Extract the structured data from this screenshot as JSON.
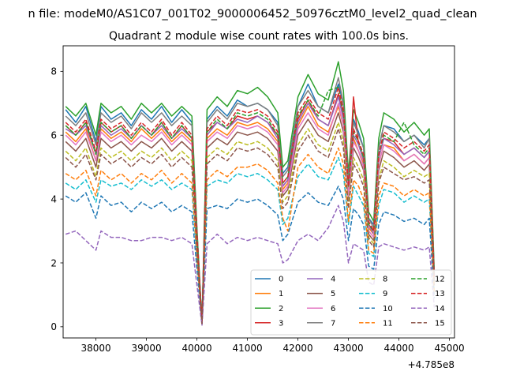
{
  "figure": {
    "suptitle": "n file: modeM0/AS1C07_001T02_9000006452_50976cztM0_level2_quad_clean",
    "title": "Quadrant 2 module wise count rates with 100.0s bins."
  },
  "chart_data": {
    "type": "line",
    "title": "Quadrant 2 module wise count rates with 100.0s bins.",
    "xlabel": "",
    "ylabel": "",
    "x_offset_label": "+4.785e8",
    "xlim": [
      37350,
      45100
    ],
    "ylim": [
      -0.35,
      8.8
    ],
    "xticks": [
      38000,
      39000,
      40000,
      41000,
      42000,
      43000,
      44000,
      45000
    ],
    "xtick_labels": [
      "38000",
      "39000",
      "40000",
      "41000",
      "42000",
      "43000",
      "44000",
      "45000"
    ],
    "yticks": [
      0,
      2,
      4,
      6,
      8
    ],
    "ytick_labels": [
      "0",
      "2",
      "4",
      "6",
      "8"
    ],
    "grid": false,
    "legend": {
      "placement": "lower-right",
      "columns": 4
    },
    "anchors_x": [
      37400,
      37600,
      37800,
      38000,
      38100,
      38300,
      38500,
      38700,
      38900,
      39100,
      39300,
      39500,
      39700,
      39900,
      40000,
      40100,
      40200,
      40400,
      40600,
      40800,
      41000,
      41200,
      41400,
      41600,
      41700,
      41800,
      42000,
      42200,
      42400,
      42600,
      42800,
      42900,
      43000,
      43100,
      43200,
      43300,
      43400,
      43500,
      43600,
      43700,
      43900,
      44100,
      44300,
      44500,
      44600,
      44700
    ],
    "series": [
      {
        "name": "0",
        "color": "#1f77b4",
        "dash": "solid",
        "values": [
          6.8,
          6.4,
          6.9,
          5.8,
          6.9,
          6.5,
          6.7,
          6.3,
          6.8,
          6.5,
          6.9,
          6.4,
          6.8,
          6.4,
          3.0,
          0.1,
          6.5,
          6.9,
          6.6,
          7.1,
          6.9,
          7.0,
          6.8,
          6.4,
          4.8,
          5.0,
          6.9,
          7.6,
          6.9,
          6.7,
          7.6,
          7.0,
          4.6,
          6.5,
          6.1,
          5.6,
          3.4,
          3.2,
          5.6,
          6.3,
          6.2,
          5.8,
          6.0,
          5.7,
          5.9,
          1.6
        ]
      },
      {
        "name": "1",
        "color": "#ff7f0e",
        "dash": "solid",
        "values": [
          6.1,
          5.8,
          6.2,
          5.2,
          6.2,
          5.9,
          6.1,
          5.8,
          6.2,
          5.9,
          6.2,
          5.8,
          6.1,
          5.8,
          2.8,
          0.1,
          5.9,
          6.2,
          6.0,
          6.4,
          6.3,
          6.4,
          6.2,
          5.8,
          4.3,
          4.5,
          6.3,
          6.9,
          6.3,
          6.1,
          6.9,
          6.3,
          4.2,
          5.9,
          5.5,
          5.1,
          3.1,
          2.9,
          5.1,
          5.7,
          5.6,
          5.2,
          5.4,
          5.1,
          5.3,
          1.4
        ]
      },
      {
        "name": "2",
        "color": "#2ca02c",
        "dash": "solid",
        "values": [
          6.9,
          6.6,
          7.0,
          6.0,
          7.0,
          6.7,
          6.9,
          6.5,
          7.0,
          6.7,
          7.0,
          6.6,
          6.9,
          6.6,
          3.1,
          0.1,
          6.8,
          7.2,
          6.9,
          7.4,
          7.3,
          7.5,
          7.2,
          6.7,
          5.0,
          5.2,
          7.2,
          7.9,
          7.3,
          7.1,
          8.3,
          7.4,
          4.8,
          6.8,
          6.4,
          5.9,
          3.6,
          3.3,
          5.9,
          6.7,
          6.5,
          6.1,
          6.4,
          6.0,
          6.2,
          1.7
        ]
      },
      {
        "name": "3",
        "color": "#d62728",
        "dash": "solid",
        "values": [
          6.3,
          6.0,
          6.4,
          5.4,
          6.4,
          6.1,
          6.3,
          5.9,
          6.3,
          6.0,
          6.4,
          5.9,
          6.3,
          5.9,
          2.8,
          0.1,
          6.1,
          6.4,
          6.2,
          6.6,
          6.5,
          6.6,
          6.4,
          6.0,
          4.4,
          4.6,
          6.5,
          7.1,
          6.5,
          6.3,
          7.3,
          6.6,
          4.3,
          7.2,
          5.7,
          5.3,
          3.2,
          3.0,
          5.3,
          5.9,
          5.8,
          5.4,
          5.6,
          5.3,
          5.5,
          1.5
        ]
      },
      {
        "name": "4",
        "color": "#9467bd",
        "dash": "solid",
        "values": [
          6.2,
          6.0,
          6.3,
          5.4,
          6.3,
          6.0,
          6.2,
          5.9,
          6.3,
          6.0,
          6.3,
          5.9,
          6.2,
          5.9,
          2.8,
          0.1,
          6.0,
          6.4,
          6.2,
          6.5,
          6.4,
          6.6,
          6.4,
          5.9,
          4.4,
          4.6,
          6.4,
          7.0,
          6.5,
          6.3,
          7.2,
          6.5,
          4.3,
          6.0,
          5.7,
          5.2,
          3.2,
          2.9,
          5.3,
          5.9,
          5.7,
          5.4,
          5.6,
          5.3,
          5.5,
          1.5
        ]
      },
      {
        "name": "5",
        "color": "#8c564b",
        "dash": "solid",
        "values": [
          5.8,
          5.5,
          5.9,
          5.0,
          5.9,
          5.6,
          5.8,
          5.5,
          5.8,
          5.6,
          5.9,
          5.5,
          5.8,
          5.5,
          2.6,
          0.1,
          5.6,
          5.9,
          5.7,
          6.1,
          6.0,
          6.1,
          5.9,
          5.5,
          4.1,
          4.3,
          6.0,
          6.5,
          6.0,
          5.8,
          6.7,
          6.1,
          4.0,
          5.6,
          5.3,
          4.9,
          2.9,
          2.7,
          4.9,
          5.5,
          5.3,
          5.0,
          5.2,
          4.9,
          5.1,
          1.4
        ]
      },
      {
        "name": "6",
        "color": "#e377c2",
        "dash": "solid",
        "values": [
          6.0,
          5.7,
          6.1,
          5.2,
          6.1,
          5.8,
          6.0,
          5.7,
          6.0,
          5.8,
          6.1,
          5.7,
          6.0,
          5.7,
          2.7,
          0.1,
          5.8,
          6.1,
          5.9,
          6.3,
          6.2,
          6.3,
          6.1,
          5.7,
          4.2,
          4.4,
          6.2,
          6.7,
          6.2,
          6.0,
          7.0,
          6.3,
          4.1,
          5.8,
          5.5,
          5.0,
          3.0,
          2.8,
          5.1,
          5.7,
          5.5,
          5.2,
          5.4,
          5.1,
          5.3,
          1.4
        ]
      },
      {
        "name": "7",
        "color": "#7f7f7f",
        "dash": "solid",
        "values": [
          6.6,
          6.3,
          6.7,
          5.7,
          6.7,
          6.4,
          6.6,
          6.2,
          6.7,
          6.4,
          6.7,
          6.3,
          6.6,
          6.3,
          3.0,
          0.1,
          6.4,
          6.8,
          6.5,
          7.0,
          6.9,
          7.0,
          6.8,
          6.3,
          4.7,
          4.9,
          6.9,
          7.4,
          6.9,
          6.7,
          7.8,
          7.0,
          4.6,
          6.4,
          6.0,
          5.6,
          3.4,
          3.1,
          5.6,
          6.3,
          6.1,
          5.8,
          6.0,
          5.6,
          5.9,
          1.6
        ]
      },
      {
        "name": "8",
        "color": "#bcbd22",
        "dash": "dashed",
        "values": [
          5.5,
          5.2,
          5.6,
          4.7,
          5.6,
          5.3,
          5.5,
          5.2,
          5.5,
          5.3,
          5.6,
          5.2,
          5.5,
          5.2,
          2.5,
          0.1,
          5.3,
          5.6,
          5.4,
          5.8,
          5.7,
          5.8,
          5.6,
          5.2,
          3.9,
          4.1,
          5.7,
          6.2,
          5.7,
          5.5,
          6.4,
          5.8,
          3.8,
          5.3,
          5.0,
          4.6,
          2.8,
          2.6,
          4.6,
          5.2,
          5.0,
          4.7,
          4.9,
          4.7,
          4.8,
          1.3
        ]
      },
      {
        "name": "9",
        "color": "#17becf",
        "dash": "dashed",
        "values": [
          4.5,
          4.3,
          4.6,
          3.9,
          4.6,
          4.4,
          4.5,
          4.3,
          4.6,
          4.4,
          4.6,
          4.3,
          4.5,
          4.3,
          2.1,
          0.1,
          4.4,
          4.6,
          4.5,
          4.8,
          4.7,
          4.8,
          4.6,
          4.3,
          3.2,
          3.4,
          4.7,
          5.1,
          4.7,
          4.6,
          5.3,
          4.8,
          3.2,
          4.4,
          4.1,
          3.8,
          2.3,
          2.2,
          3.8,
          4.3,
          4.2,
          3.9,
          4.1,
          3.9,
          4.0,
          1.1
        ]
      },
      {
        "name": "10",
        "color": "#1f77b4",
        "dash": "dashed",
        "values": [
          4.1,
          3.9,
          4.2,
          3.4,
          4.1,
          3.8,
          3.9,
          3.6,
          3.9,
          3.7,
          3.9,
          3.6,
          3.8,
          3.6,
          1.8,
          0.1,
          3.7,
          3.8,
          3.7,
          4.0,
          3.9,
          4.0,
          3.8,
          3.5,
          2.7,
          2.9,
          3.9,
          4.2,
          3.9,
          3.8,
          4.4,
          4.0,
          2.7,
          3.7,
          3.5,
          3.2,
          1.9,
          1.8,
          3.2,
          3.6,
          3.5,
          3.3,
          3.4,
          3.2,
          3.4,
          0.9
        ]
      },
      {
        "name": "11",
        "color": "#ff7f0e",
        "dash": "dashed",
        "values": [
          4.8,
          4.6,
          4.9,
          4.1,
          4.9,
          4.6,
          4.8,
          4.5,
          4.8,
          4.6,
          4.9,
          4.5,
          4.8,
          4.5,
          2.2,
          0.1,
          4.6,
          4.9,
          4.7,
          5.0,
          5.0,
          5.1,
          4.9,
          4.5,
          3.4,
          3.0,
          5.0,
          5.4,
          5.0,
          4.8,
          5.6,
          5.1,
          3.3,
          4.6,
          4.4,
          4.0,
          2.4,
          2.3,
          4.1,
          4.5,
          4.4,
          4.1,
          4.3,
          4.1,
          4.2,
          1.1
        ]
      },
      {
        "name": "12",
        "color": "#2ca02c",
        "dash": "dashed",
        "values": [
          6.3,
          6.0,
          6.4,
          5.4,
          6.4,
          6.1,
          6.3,
          5.9,
          6.3,
          6.0,
          6.4,
          5.9,
          6.3,
          5.9,
          2.8,
          0.1,
          6.1,
          6.5,
          6.2,
          6.7,
          6.6,
          6.7,
          6.5,
          6.0,
          4.5,
          4.7,
          6.6,
          7.1,
          6.6,
          7.4,
          7.5,
          6.7,
          4.4,
          6.1,
          5.8,
          5.3,
          3.2,
          3.0,
          5.4,
          6.0,
          5.8,
          6.4,
          5.7,
          5.4,
          5.6,
          1.5
        ]
      },
      {
        "name": "13",
        "color": "#d62728",
        "dash": "dashed",
        "values": [
          6.4,
          6.1,
          6.5,
          5.5,
          6.5,
          6.2,
          6.4,
          6.0,
          6.4,
          6.1,
          6.5,
          6.0,
          6.4,
          6.0,
          2.9,
          0.1,
          6.2,
          6.6,
          6.3,
          6.8,
          6.7,
          6.8,
          6.6,
          6.1,
          4.5,
          4.7,
          6.7,
          7.2,
          6.7,
          6.5,
          7.5,
          6.8,
          4.4,
          6.2,
          5.8,
          5.4,
          3.3,
          3.0,
          5.4,
          6.1,
          5.9,
          5.6,
          5.8,
          5.5,
          5.7,
          1.5
        ]
      },
      {
        "name": "14",
        "color": "#9467bd",
        "dash": "dashed",
        "values": [
          2.9,
          3.0,
          2.7,
          2.4,
          3.0,
          2.8,
          2.8,
          2.7,
          2.7,
          2.8,
          2.8,
          2.7,
          2.8,
          2.6,
          1.3,
          0.05,
          2.6,
          2.9,
          2.6,
          2.8,
          2.7,
          2.8,
          2.7,
          2.6,
          2.0,
          2.1,
          2.7,
          2.9,
          2.7,
          3.1,
          3.8,
          3.3,
          2.0,
          2.6,
          2.5,
          2.4,
          1.4,
          1.3,
          2.5,
          2.6,
          2.5,
          2.4,
          2.5,
          2.4,
          2.5,
          0.6
        ]
      },
      {
        "name": "15",
        "color": "#8c564b",
        "dash": "dashed",
        "values": [
          5.3,
          5.0,
          5.4,
          4.6,
          5.4,
          5.1,
          5.3,
          5.0,
          5.3,
          5.1,
          5.4,
          5.0,
          5.3,
          5.0,
          2.4,
          0.1,
          5.1,
          5.4,
          5.2,
          5.6,
          5.5,
          5.6,
          5.4,
          5.0,
          3.7,
          3.9,
          5.5,
          6.0,
          5.5,
          5.3,
          6.2,
          5.6,
          3.7,
          5.1,
          4.8,
          4.4,
          2.7,
          2.5,
          4.5,
          5.0,
          4.8,
          4.6,
          4.7,
          4.5,
          4.6,
          1.3
        ]
      }
    ]
  }
}
